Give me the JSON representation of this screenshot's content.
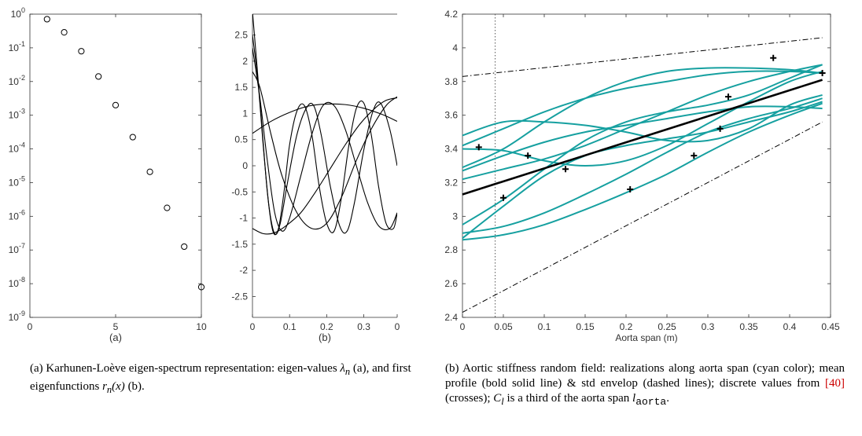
{
  "figure": {
    "caption_a": {
      "label": "(a)",
      "text_1": "Karhunen-Loève eigen-spectrum representation: eigen-values",
      "sym_1": "λ",
      "sub_1": "n",
      "text_2": "(a), and first eigenfunctions",
      "sym_2": "r",
      "sub_2": "n",
      "sym_2b": "(x)",
      "text_3": "(b)."
    },
    "caption_b": {
      "label": "(b)",
      "text_1": "Aortic stiffness random field: realizations along aorta span (cyan color); mean profile (bold solid line) & std envelop (dashed lines); discrete values from",
      "ref": "[40]",
      "text_2": "(crosses);",
      "sym_1": "C",
      "sub_1": "l",
      "text_3": "is a third of the aorta span",
      "sym_2": "l",
      "sub_2": "aorta",
      "text_4": "."
    }
  },
  "chart_data": [
    {
      "type": "scatter",
      "sublabel": "(a)",
      "xlabel": "",
      "ylabel": "",
      "xlim": [
        0,
        10
      ],
      "ylim_exp": [
        -9,
        0
      ],
      "yscale": "log",
      "xticks": [
        "0",
        "5",
        "10"
      ],
      "yticks": [
        {
          "base": "10",
          "exp": "0"
        },
        {
          "base": "10",
          "exp": "-1"
        },
        {
          "base": "10",
          "exp": "-2"
        },
        {
          "base": "10",
          "exp": "-3"
        },
        {
          "base": "10",
          "exp": "-4"
        },
        {
          "base": "10",
          "exp": "-5"
        },
        {
          "base": "10",
          "exp": "-6"
        },
        {
          "base": "10",
          "exp": "-7"
        },
        {
          "base": "10",
          "exp": "-8"
        },
        {
          "base": "10",
          "exp": "-9"
        }
      ],
      "x": [
        1,
        2,
        3,
        4,
        5,
        6,
        7,
        8,
        9,
        10
      ],
      "y_log10": [
        -0.15,
        -0.54,
        -1.1,
        -1.85,
        -2.7,
        -3.65,
        -4.68,
        -5.75,
        -6.9,
        -8.1
      ],
      "marker": "open-circle"
    },
    {
      "type": "line",
      "sublabel": "(b)",
      "xlabel": "",
      "ylabel": "",
      "xlim": [
        0,
        0.39
      ],
      "ylim": [
        -2.9,
        2.9
      ],
      "xticks": [
        "0",
        "0.1",
        "0.2",
        "0.3",
        "0"
      ],
      "yticks": [
        "2.5",
        "2",
        "1.5",
        "1",
        "0.5",
        "0",
        "-0.5",
        "-1",
        "-1.5",
        "-2",
        "-2.5"
      ],
      "series": [
        {
          "values": [
            [
              0,
              0.62
            ],
            [
              0.05,
              0.85
            ],
            [
              0.1,
              1.02
            ],
            [
              0.15,
              1.14
            ],
            [
              0.2,
              1.18
            ],
            [
              0.25,
              1.17
            ],
            [
              0.3,
              1.1
            ],
            [
              0.35,
              0.98
            ],
            [
              0.39,
              0.85
            ]
          ]
        },
        {
          "values": [
            [
              0,
              1.8
            ],
            [
              0.02,
              1.5
            ],
            [
              0.05,
              0.6
            ],
            [
              0.08,
              -0.2
            ],
            [
              0.12,
              -0.9
            ],
            [
              0.16,
              -1.2
            ],
            [
              0.2,
              -1.1
            ],
            [
              0.24,
              -0.6
            ],
            [
              0.28,
              0.1
            ],
            [
              0.32,
              0.7
            ],
            [
              0.36,
              1.15
            ],
            [
              0.39,
              1.32
            ]
          ]
        },
        {
          "values": [
            [
              0,
              2.25
            ],
            [
              0.02,
              1.3
            ],
            [
              0.04,
              0.1
            ],
            [
              0.06,
              -0.9
            ],
            [
              0.08,
              -1.25
            ],
            [
              0.1,
              -1.0
            ],
            [
              0.13,
              -0.2
            ],
            [
              0.16,
              0.6
            ],
            [
              0.19,
              1.15
            ],
            [
              0.22,
              1.15
            ],
            [
              0.25,
              0.7
            ],
            [
              0.28,
              0.0
            ],
            [
              0.31,
              -0.7
            ],
            [
              0.34,
              -1.15
            ],
            [
              0.37,
              -1.2
            ],
            [
              0.39,
              -0.9
            ]
          ]
        },
        {
          "values": [
            [
              0,
              2.5
            ],
            [
              0.015,
              1.6
            ],
            [
              0.03,
              0.3
            ],
            [
              0.045,
              -0.8
            ],
            [
              0.06,
              -1.3
            ],
            [
              0.075,
              -1.1
            ],
            [
              0.095,
              -0.3
            ],
            [
              0.12,
              0.6
            ],
            [
              0.145,
              1.1
            ],
            [
              0.165,
              1.15
            ],
            [
              0.185,
              0.6
            ],
            [
              0.21,
              -0.4
            ],
            [
              0.235,
              -1.15
            ],
            [
              0.255,
              -1.25
            ],
            [
              0.275,
              -0.7
            ],
            [
              0.3,
              0.3
            ],
            [
              0.325,
              1.05
            ],
            [
              0.345,
              1.2
            ],
            [
              0.37,
              0.7
            ],
            [
              0.39,
              0.0
            ]
          ]
        },
        {
          "values": [
            [
              0,
              2.95
            ],
            [
              0.01,
              2.1
            ],
            [
              0.025,
              0.8
            ],
            [
              0.04,
              -0.5
            ],
            [
              0.055,
              -1.25
            ],
            [
              0.07,
              -1.2
            ],
            [
              0.085,
              -0.5
            ],
            [
              0.1,
              0.4
            ],
            [
              0.12,
              1.05
            ],
            [
              0.14,
              1.15
            ],
            [
              0.16,
              0.6
            ],
            [
              0.18,
              -0.4
            ],
            [
              0.2,
              -1.1
            ],
            [
              0.22,
              -1.25
            ],
            [
              0.24,
              -0.6
            ],
            [
              0.26,
              0.4
            ],
            [
              0.28,
              1.1
            ],
            [
              0.3,
              1.2
            ],
            [
              0.32,
              0.6
            ],
            [
              0.34,
              -0.4
            ],
            [
              0.36,
              -1.1
            ],
            [
              0.38,
              -1.2
            ],
            [
              0.39,
              -0.9
            ]
          ]
        },
        {
          "values": [
            [
              0,
              -1.2
            ],
            [
              0.03,
              -1.3
            ],
            [
              0.06,
              -1.28
            ],
            [
              0.09,
              -1.15
            ],
            [
              0.13,
              -0.9
            ],
            [
              0.17,
              -0.5
            ],
            [
              0.21,
              -0.05
            ],
            [
              0.25,
              0.4
            ],
            [
              0.29,
              0.8
            ],
            [
              0.33,
              1.1
            ],
            [
              0.36,
              1.25
            ],
            [
              0.39,
              1.3
            ]
          ]
        }
      ]
    },
    {
      "type": "line",
      "sublabel": "",
      "xlabel": "Aorta span (m)",
      "ylabel": "",
      "xlim": [
        0,
        0.45
      ],
      "ylim": [
        2.4,
        4.2
      ],
      "xticks": [
        "0",
        "0.05",
        "0.1",
        "0.15",
        "0.2",
        "0.25",
        "0.3",
        "0.35",
        "0.4",
        "0.45"
      ],
      "yticks": [
        "4.2",
        "4",
        "3.8",
        "3.6",
        "3.4",
        "3.2",
        "3",
        "2.8",
        "2.6",
        "2.4"
      ],
      "vline_x": 0.04,
      "mean": [
        [
          0,
          3.13
        ],
        [
          0.44,
          3.81
        ]
      ],
      "std_upper": [
        [
          0,
          3.83
        ],
        [
          0.44,
          4.06
        ]
      ],
      "std_lower": [
        [
          0,
          2.43
        ],
        [
          0.44,
          3.56
        ]
      ],
      "realizations": [
        [
          [
            0,
            3.48
          ],
          [
            0.05,
            3.56
          ],
          [
            0.1,
            3.56
          ],
          [
            0.15,
            3.54
          ],
          [
            0.2,
            3.5
          ],
          [
            0.25,
            3.45
          ],
          [
            0.3,
            3.45
          ],
          [
            0.35,
            3.52
          ],
          [
            0.4,
            3.66
          ],
          [
            0.44,
            3.72
          ]
        ],
        [
          [
            0,
            3.4
          ],
          [
            0.05,
            3.39
          ],
          [
            0.1,
            3.33
          ],
          [
            0.15,
            3.3
          ],
          [
            0.2,
            3.33
          ],
          [
            0.25,
            3.42
          ],
          [
            0.3,
            3.55
          ],
          [
            0.35,
            3.68
          ],
          [
            0.4,
            3.8
          ],
          [
            0.44,
            3.86
          ]
        ],
        [
          [
            0,
            3.42
          ],
          [
            0.05,
            3.52
          ],
          [
            0.1,
            3.62
          ],
          [
            0.15,
            3.7
          ],
          [
            0.2,
            3.76
          ],
          [
            0.25,
            3.8
          ],
          [
            0.3,
            3.84
          ],
          [
            0.35,
            3.86
          ],
          [
            0.4,
            3.86
          ],
          [
            0.44,
            3.85
          ]
        ],
        [
          [
            0,
            3.29
          ],
          [
            0.05,
            3.4
          ],
          [
            0.1,
            3.56
          ],
          [
            0.15,
            3.7
          ],
          [
            0.2,
            3.8
          ],
          [
            0.25,
            3.86
          ],
          [
            0.3,
            3.88
          ],
          [
            0.35,
            3.88
          ],
          [
            0.4,
            3.87
          ],
          [
            0.44,
            3.85
          ]
        ],
        [
          [
            0,
            3.27
          ],
          [
            0.05,
            3.36
          ],
          [
            0.1,
            3.44
          ],
          [
            0.15,
            3.5
          ],
          [
            0.2,
            3.54
          ],
          [
            0.25,
            3.58
          ],
          [
            0.3,
            3.62
          ],
          [
            0.35,
            3.65
          ],
          [
            0.4,
            3.65
          ],
          [
            0.44,
            3.64
          ]
        ],
        [
          [
            0,
            3.22
          ],
          [
            0.05,
            3.28
          ],
          [
            0.1,
            3.34
          ],
          [
            0.15,
            3.42
          ],
          [
            0.2,
            3.52
          ],
          [
            0.25,
            3.62
          ],
          [
            0.3,
            3.72
          ],
          [
            0.35,
            3.8
          ],
          [
            0.4,
            3.86
          ],
          [
            0.44,
            3.9
          ]
        ],
        [
          [
            0,
            2.95
          ],
          [
            0.05,
            3.1
          ],
          [
            0.1,
            3.28
          ],
          [
            0.15,
            3.45
          ],
          [
            0.2,
            3.56
          ],
          [
            0.25,
            3.62
          ],
          [
            0.3,
            3.66
          ],
          [
            0.35,
            3.72
          ],
          [
            0.4,
            3.82
          ],
          [
            0.44,
            3.9
          ]
        ],
        [
          [
            0,
            2.9
          ],
          [
            0.05,
            2.94
          ],
          [
            0.1,
            3.02
          ],
          [
            0.15,
            3.13
          ],
          [
            0.2,
            3.25
          ],
          [
            0.25,
            3.38
          ],
          [
            0.3,
            3.5
          ],
          [
            0.35,
            3.58
          ],
          [
            0.4,
            3.64
          ],
          [
            0.44,
            3.7
          ]
        ],
        [
          [
            0,
            2.87
          ],
          [
            0.05,
            3.06
          ],
          [
            0.1,
            3.24
          ],
          [
            0.15,
            3.36
          ],
          [
            0.2,
            3.42
          ],
          [
            0.25,
            3.46
          ],
          [
            0.3,
            3.5
          ],
          [
            0.35,
            3.56
          ],
          [
            0.4,
            3.62
          ],
          [
            0.44,
            3.68
          ]
        ],
        [
          [
            0,
            2.86
          ],
          [
            0.05,
            2.89
          ],
          [
            0.1,
            2.95
          ],
          [
            0.15,
            3.04
          ],
          [
            0.2,
            3.14
          ],
          [
            0.25,
            3.25
          ],
          [
            0.3,
            3.38
          ],
          [
            0.35,
            3.5
          ],
          [
            0.4,
            3.6
          ],
          [
            0.44,
            3.67
          ]
        ]
      ],
      "crosses": [
        [
          0.02,
          3.41
        ],
        [
          0.05,
          3.11
        ],
        [
          0.08,
          3.36
        ],
        [
          0.126,
          3.28
        ],
        [
          0.205,
          3.16
        ],
        [
          0.283,
          3.36
        ],
        [
          0.315,
          3.52
        ],
        [
          0.325,
          3.71
        ],
        [
          0.38,
          3.94
        ],
        [
          0.44,
          3.85
        ]
      ],
      "realization_color": "#16a0a0",
      "mean_color": "#000000"
    }
  ]
}
